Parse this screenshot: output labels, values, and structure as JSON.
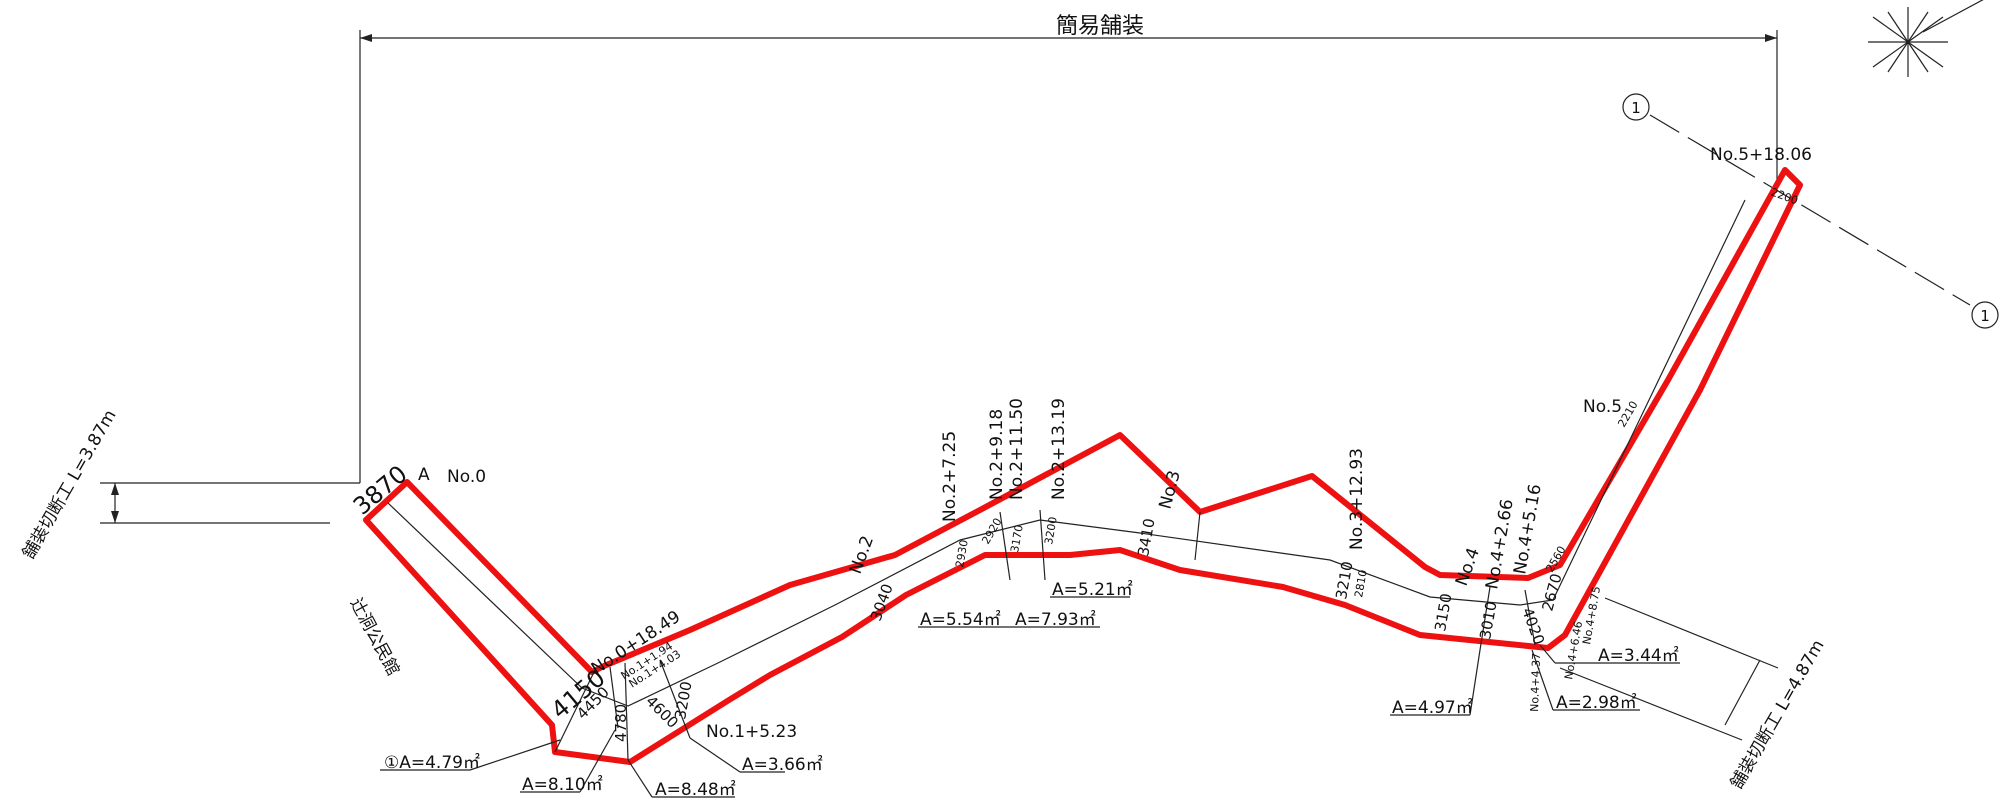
{
  "title": "簡易舗装",
  "cut_left": "舗装切断工 L=3.87m",
  "cut_right": "舗装切断工 L=4.87m",
  "building": "辻洞公民館",
  "section_marker": "1",
  "point_a": "A",
  "stations": {
    "no0": "No.0",
    "no0_1849": "No.0+18.49",
    "no1_194": "No.1+1.94",
    "no1_403": "No.1+4.03",
    "no1_523": "No.1+5.23",
    "no2": "No.2",
    "no2_725": "No.2+7.25",
    "no2_918": "No.2+9.18",
    "no2_1150": "No.2+11.50",
    "no2_1319": "No.2+13.19",
    "no3": "No.3",
    "no3_1293": "No.3+12.93",
    "no4": "No.4",
    "no4_266": "No.4+2.66",
    "no4_516": "No.4+5.16",
    "no4_875": "No.4+8.75",
    "no4_646": "No.4+6.46",
    "no4_437": "No.4+4.37",
    "no5": "No.5",
    "no5_1806": "No.5+18.06"
  },
  "widths": {
    "w3870": "3870",
    "w4150": "4150",
    "w4450": "4450",
    "w4780": "4780",
    "w4600": "4600",
    "w3200a": "3200",
    "w3040": "3040",
    "w2930": "2930",
    "w2920": "2920",
    "w3170": "3170",
    "w3200b": "3200",
    "w3410": "3410",
    "w3210": "3210",
    "w2810": "2810",
    "w3150": "3150",
    "w3010": "3010",
    "w4020": "4020",
    "w2670": "2670",
    "w2560": "2560",
    "w2210": "2210",
    "w2200": "2200"
  },
  "areas": {
    "a1": "①A=4.79㎡",
    "a2": "A=8.10㎡",
    "a3": "A=8.48㎡",
    "a4": "A=3.66㎡",
    "a5": "A=5.54㎡",
    "a6": "A=7.93㎡",
    "a7": "A=5.21㎡",
    "a8": "A=4.97㎡",
    "a9": "A=3.44㎡",
    "a10": "A=2.98㎡"
  },
  "colors": {
    "boundary": "#ee1111",
    "line": "#222222"
  },
  "icons": {
    "compass": "north-arrow-icon"
  }
}
